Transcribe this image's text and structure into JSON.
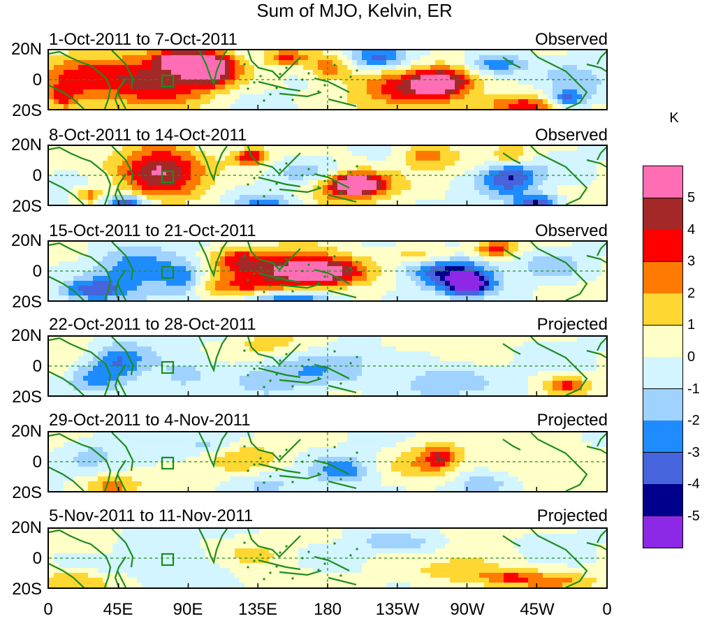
{
  "title": "Sum of MJO, Kelvin, ER",
  "panels": [
    {
      "period": "1-Oct-2011 to 7-Oct-2011",
      "status": "Observed"
    },
    {
      "period": "8-Oct-2011 to 14-Oct-2011",
      "status": "Observed"
    },
    {
      "period": "15-Oct-2011 to 21-Oct-2011",
      "status": "Observed"
    },
    {
      "period": "22-Oct-2011 to 28-Oct-2011",
      "status": "Projected"
    },
    {
      "period": "29-Oct-2011 to 4-Nov-2011",
      "status": "Projected"
    },
    {
      "period": "5-Nov-2011 to 11-Nov-2011",
      "status": "Projected"
    }
  ],
  "lat_labels": [
    "20N",
    "0",
    "20S"
  ],
  "lon_labels": [
    "0",
    "45E",
    "90E",
    "135E",
    "180",
    "135W",
    "90W",
    "45W",
    "0"
  ],
  "colorbar": {
    "units": "K",
    "labels": [
      "5",
      "4",
      "3",
      "2",
      "1",
      "0",
      "-1",
      "-2",
      "-3",
      "-4",
      "-5"
    ],
    "colors": [
      "#ff6eb4",
      "#a52828",
      "#ff0000",
      "#ff7a00",
      "#ffd732",
      "#ffffc8",
      "#d2f5ff",
      "#a0d2ff",
      "#1e8cff",
      "#4664dc",
      "#00008c",
      "#8c28e6"
    ]
  },
  "map_colors": {
    "coast": "#1e8c1e",
    "grid": "#1e8c1e"
  }
}
